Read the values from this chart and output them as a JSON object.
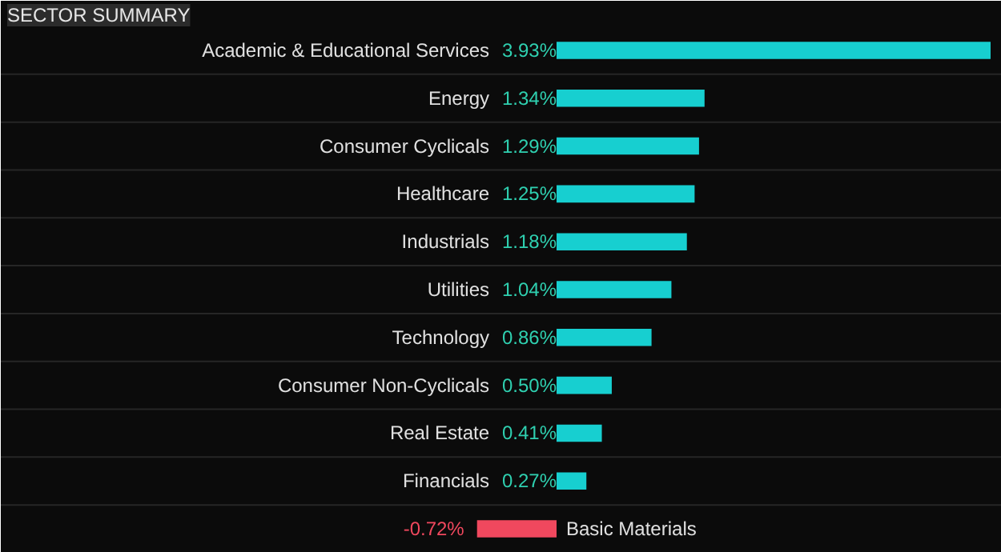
{
  "chart_data": {
    "type": "bar",
    "orientation": "horizontal",
    "title": "SECTOR SUMMARY",
    "value_labels": [
      "3.93%",
      "1.34%",
      "1.29%",
      "1.25%",
      "1.18%",
      "1.04%",
      "0.86%",
      "0.50%",
      "0.41%",
      "0.27%",
      "-0.72%"
    ],
    "categories": [
      "Academic & Educational Services",
      "Energy",
      "Consumer Cyclicals",
      "Healthcare",
      "Industrials",
      "Utilities",
      "Technology",
      "Consumer Non-Cyclicals",
      "Real Estate",
      "Financials",
      "Basic Materials"
    ],
    "values": [
      3.93,
      1.34,
      1.29,
      1.25,
      1.18,
      1.04,
      0.86,
      0.5,
      0.41,
      0.27,
      -0.72
    ],
    "colors": [
      "#17cfd0",
      "#17cfd0",
      "#17cfd0",
      "#17cfd0",
      "#17cfd0",
      "#17cfd0",
      "#17cfd0",
      "#17cfd0",
      "#17cfd0",
      "#17cfd0",
      "#f0485e"
    ]
  }
}
